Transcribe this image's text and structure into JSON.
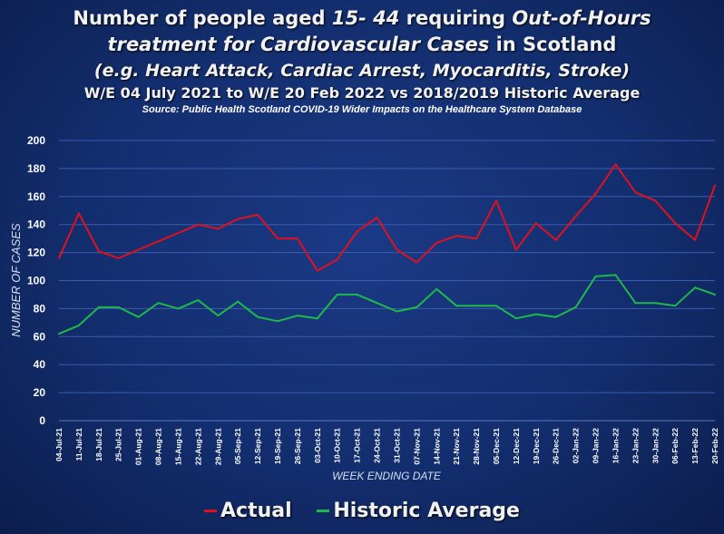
{
  "title": {
    "line1_prefix": "Number of people aged ",
    "line1_em": "15- 44",
    "line1_mid": " requiring ",
    "line1_em2": "Out-of-Hours",
    "line2_em": "treatment for Cardiovascular Cases",
    "line2_suffix": " in Scotland",
    "line3": "(e.g. Heart Attack, Cardiac Arrest, Myocarditis, Stroke)",
    "line4": "W/E 04 July 2021 to W/E 20 Feb 2022 vs 2018/2019 Historic Average",
    "line5": "Source: Public Health Scotland COVID-19 Wider Impacts on the Healthcare System Database"
  },
  "colors": {
    "actual": "#e0101e",
    "historic": "#1fb84a",
    "grid": "#3a5cae",
    "text": "#ffffff"
  },
  "chart_data": {
    "type": "line",
    "xlabel": "WEEK ENDING DATE",
    "ylabel": "NUMBER OF CASES",
    "ylim": [
      0,
      200
    ],
    "yticks": [
      0,
      20,
      40,
      60,
      80,
      100,
      120,
      140,
      160,
      180,
      200
    ],
    "grid": true,
    "legend_position": "bottom",
    "categories": [
      "04-Jul-21",
      "11-Jul-21",
      "18-Jul-21",
      "25-Jul-21",
      "01-Aug-21",
      "08-Aug-21",
      "15-Aug-21",
      "22-Aug-21",
      "29-Aug-21",
      "05-Sep-21",
      "12-Sep-21",
      "19-Sep-21",
      "26-Sep-21",
      "03-Oct-21",
      "10-Oct-21",
      "17-Oct-21",
      "24-Oct-21",
      "31-Oct-21",
      "07-Nov-21",
      "14-Nov-21",
      "21-Nov-21",
      "28-Nov-21",
      "05-Dec-21",
      "12-Dec-21",
      "19-Dec-21",
      "26-Dec-21",
      "02-Jan-22",
      "09-Jan-22",
      "16-Jan-22",
      "23-Jan-22",
      "30-Jan-22",
      "06-Feb-22",
      "13-Feb-22",
      "20-Feb-22"
    ],
    "series": [
      {
        "name": "Actual",
        "values": [
          116,
          148,
          121,
          116,
          122,
          128,
          134,
          140,
          137,
          144,
          147,
          130,
          130,
          107,
          115,
          135,
          145,
          122,
          113,
          127,
          132,
          130,
          157,
          122,
          141,
          129,
          146,
          162,
          183,
          163,
          157,
          141,
          129,
          168
        ]
      },
      {
        "name": "Historic Average",
        "values": [
          62,
          68,
          81,
          81,
          74,
          84,
          80,
          86,
          75,
          85,
          74,
          71,
          75,
          73,
          90,
          90,
          84,
          78,
          81,
          94,
          82,
          82,
          82,
          73,
          76,
          74,
          81,
          103,
          104,
          84,
          84,
          82,
          95,
          90
        ]
      }
    ]
  }
}
